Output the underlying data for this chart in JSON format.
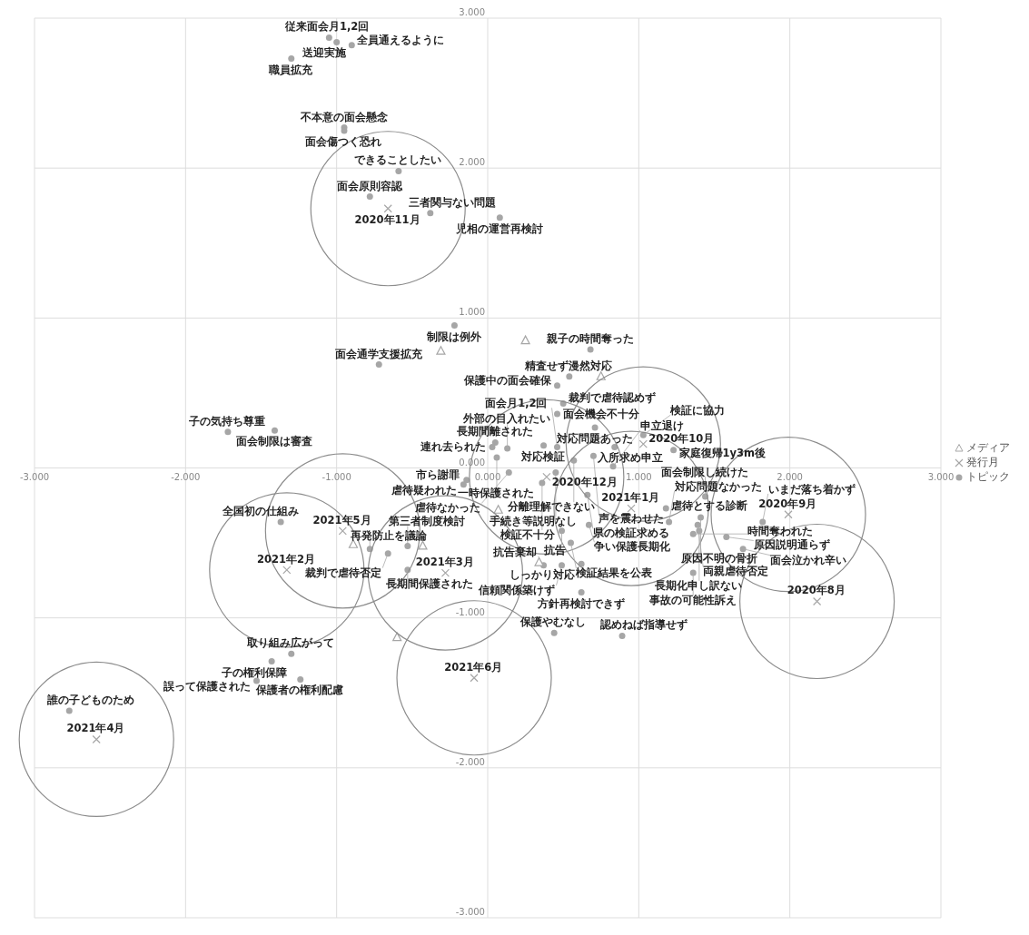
{
  "chart_data": {
    "type": "scatter",
    "xlim": [
      -3,
      3
    ],
    "ylim": [
      -3,
      3
    ],
    "xticks": [
      {
        "value": -3,
        "label": "-3.000"
      },
      {
        "value": -2,
        "label": "-2.000"
      },
      {
        "value": -1,
        "label": "-1.000"
      },
      {
        "value": 0,
        "label": "0.000"
      },
      {
        "value": 1,
        "label": "1.000"
      },
      {
        "value": 2,
        "label": "2.000"
      },
      {
        "value": 3,
        "label": "3.000"
      }
    ],
    "yticks": [
      {
        "value": -3,
        "label": "-3.000"
      },
      {
        "value": -2,
        "label": "-2.000"
      },
      {
        "value": -1,
        "label": "-1.000"
      },
      {
        "value": 0,
        "label": "0.000"
      },
      {
        "value": 1,
        "label": "1.000"
      },
      {
        "value": 2,
        "label": "2.000"
      },
      {
        "value": 3,
        "label": "3.000"
      }
    ],
    "grid": true,
    "legend": "right",
    "series": [
      {
        "name": "メディア",
        "color": "#a6a6a6",
        "marker": "triangle",
        "x": [
          -0.31,
          0.25,
          0.75,
          0.07,
          -0.89,
          -0.43,
          0.34,
          -0.6
        ],
        "values": [
          0.78,
          0.85,
          0.61,
          -0.28,
          -0.51,
          -0.52,
          -0.63,
          -1.13
        ]
      },
      {
        "name": "発行月",
        "color": "#a6a6a6",
        "marker": "cross",
        "x": [
          2.18,
          1.99,
          1.03,
          -0.66,
          0.39,
          0.95,
          -1.33,
          -0.28,
          -2.59,
          -0.96,
          -0.09
        ],
        "values": [
          -0.89,
          -0.31,
          0.16,
          1.73,
          -0.06,
          -0.27,
          -0.68,
          -0.7,
          -1.81,
          -0.42,
          -1.4
        ],
        "value_labels": [
          "2020年8月",
          "2020年9月",
          "2020年10月",
          "2020年11月",
          "2020年12月",
          "2021年1月",
          "2021年2月",
          "2021年3月",
          "2021年4月",
          "2021年5月",
          "2021年6月"
        ]
      },
      {
        "name": "トピック",
        "color": "#a6a6a6",
        "marker": "circle",
        "x": [
          -1.05,
          -1.0,
          -0.9,
          -1.3,
          -0.95,
          -0.95,
          -0.59,
          -0.78,
          -0.38,
          0.08,
          -0.22,
          -0.72,
          -1.72,
          -1.41,
          0.05,
          0.03,
          0.13,
          0.06,
          -0.14,
          -0.16,
          -1.37,
          -0.78,
          -0.66,
          -0.53,
          -0.53,
          0.68,
          0.54,
          0.46,
          0.5,
          0.46,
          0.71,
          0.37,
          0.46,
          0.57,
          0.84,
          0.7,
          0.45,
          0.36,
          0.14,
          0.83,
          1.03,
          1.23,
          0.66,
          0.67,
          0.49,
          0.55,
          0.62,
          0.37,
          0.49,
          0.62,
          0.44,
          0.89,
          1.18,
          1.2,
          1.44,
          1.41,
          1.39,
          1.4,
          1.36,
          1.36,
          1.58,
          1.69,
          1.82,
          -2.77,
          -1.3,
          -1.43,
          -1.24,
          -1.53
        ],
        "values": [
          2.87,
          2.84,
          2.82,
          2.73,
          2.27,
          2.25,
          1.98,
          1.81,
          1.7,
          1.67,
          0.95,
          0.69,
          0.24,
          0.25,
          0.17,
          0.14,
          0.13,
          0.07,
          -0.08,
          -0.11,
          -0.36,
          -0.54,
          -0.57,
          -0.52,
          -0.68,
          0.79,
          0.61,
          0.55,
          0.43,
          0.36,
          0.27,
          0.15,
          0.14,
          0.05,
          0.14,
          0.08,
          -0.03,
          -0.1,
          -0.03,
          0.01,
          0.22,
          0.12,
          -0.18,
          -0.38,
          -0.42,
          -0.5,
          -0.64,
          -0.65,
          -0.65,
          -0.83,
          -1.1,
          -1.12,
          -0.27,
          -0.36,
          -0.19,
          -0.33,
          -0.38,
          -0.42,
          -0.44,
          -0.7,
          -0.46,
          -0.54,
          -0.36,
          -1.62,
          -1.24,
          -1.29,
          -1.41,
          -1.42
        ],
        "value_labels": [
          "従来面会月1,2回",
          "送迎実施",
          "全員通えるように",
          "職員拡充",
          "不本意の面会懸念",
          "面会傷つく恐れ",
          "できることしたい",
          "面会原則容認",
          "三者関与ない問題",
          "児相の運営再検討",
          "制限は例外",
          "面会通学支援拡充",
          "子の気持ち尊重",
          "面会制限は審査",
          "長期間離された",
          "連れ去られた",
          "外部の目入れたい",
          "一時保護された",
          "市ら謝罪",
          "虐待疑われた",
          "全国初の仕組み",
          "再発防止を議論",
          "裁判で虐待否定",
          "第三者制度検討",
          "長期間保護された",
          "親子の時間奪った",
          "精査せず漫然対応",
          "保護中の面会確保",
          "裁判で虐待認めず",
          "面会機会不十分",
          "対応問題あった",
          "対応検証",
          "面会月1,2回",
          "分離理解できない",
          "入所求め申立",
          "声を震わせた",
          "手続き等説明なし",
          "検証不十分",
          "虐待なかった",
          "申立退け",
          "検証に協力",
          "家庭復帰1y3m後",
          "県の検証求める",
          "争い保護長期化",
          "抗告",
          "検証結果を公表",
          "しっかり対応",
          "抗告棄却",
          "信頼関係築けず",
          "方針再検討できず",
          "保護やむなし",
          "認めねば指導せず",
          "虐待とする診断",
          "対応問題なかった",
          "面会制限し続けた",
          "原因不明の骨折",
          "両親虐待否定",
          "長期化申し訳ない",
          "時間奪われた",
          "事故の可能性訴え",
          "原因説明通らず",
          "面会泣かれ辛い",
          "いまだ落ち着かず",
          "誰の子どものため",
          "取り組み広がって",
          "子の権利保障",
          "保護者の権利配慮",
          "誤って保護された"
        ]
      }
    ]
  }
}
